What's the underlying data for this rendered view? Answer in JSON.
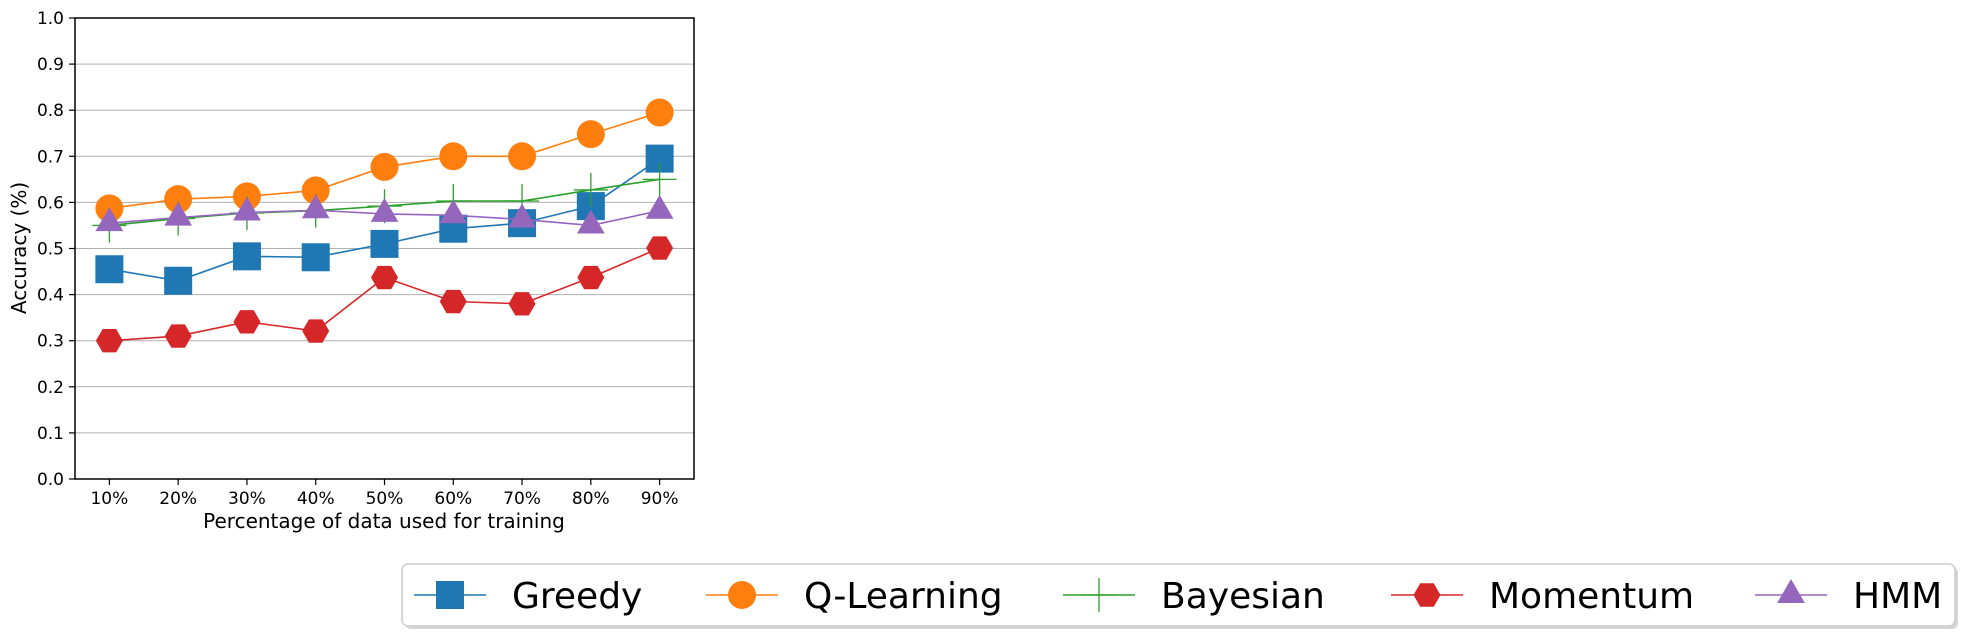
{
  "chart_data": {
    "type": "line",
    "title": "",
    "xlabel": "Percentage of data used for training",
    "ylabel": "Accuracy (%)",
    "categories": [
      "10%",
      "20%",
      "30%",
      "40%",
      "50%",
      "60%",
      "70%",
      "80%",
      "90%"
    ],
    "ylim": [
      0,
      1.0
    ],
    "yticks": [
      "0.0",
      "0.1",
      "0.2",
      "0.3",
      "0.4",
      "0.5",
      "0.6",
      "0.7",
      "0.8",
      "0.9",
      "1.0"
    ],
    "grid": "horizontal",
    "legend_position": "bottom",
    "series": [
      {
        "name": "Greedy",
        "color": "#1f77b4",
        "marker": "square",
        "values": [
          0.455,
          0.43,
          0.483,
          0.481,
          0.51,
          0.543,
          0.555,
          0.592,
          0.695
        ]
      },
      {
        "name": "Q-Learning",
        "color": "#ff7f0e",
        "marker": "circle",
        "values": [
          0.587,
          0.607,
          0.613,
          0.626,
          0.677,
          0.7,
          0.7,
          0.748,
          0.795
        ]
      },
      {
        "name": "Bayesian",
        "color": "#2ca02c",
        "marker": "plus",
        "values": [
          0.55,
          0.565,
          0.577,
          0.582,
          0.592,
          0.603,
          0.603,
          0.627,
          0.65
        ]
      },
      {
        "name": "Momentum",
        "color": "#d62728",
        "marker": "hexagon",
        "values": [
          0.3,
          0.31,
          0.341,
          0.321,
          0.437,
          0.385,
          0.38,
          0.437,
          0.501
        ]
      },
      {
        "name": "HMM",
        "color": "#9467bd",
        "marker": "triangle",
        "values": [
          0.555,
          0.567,
          0.578,
          0.583,
          0.575,
          0.572,
          0.563,
          0.55,
          0.582
        ]
      }
    ]
  }
}
